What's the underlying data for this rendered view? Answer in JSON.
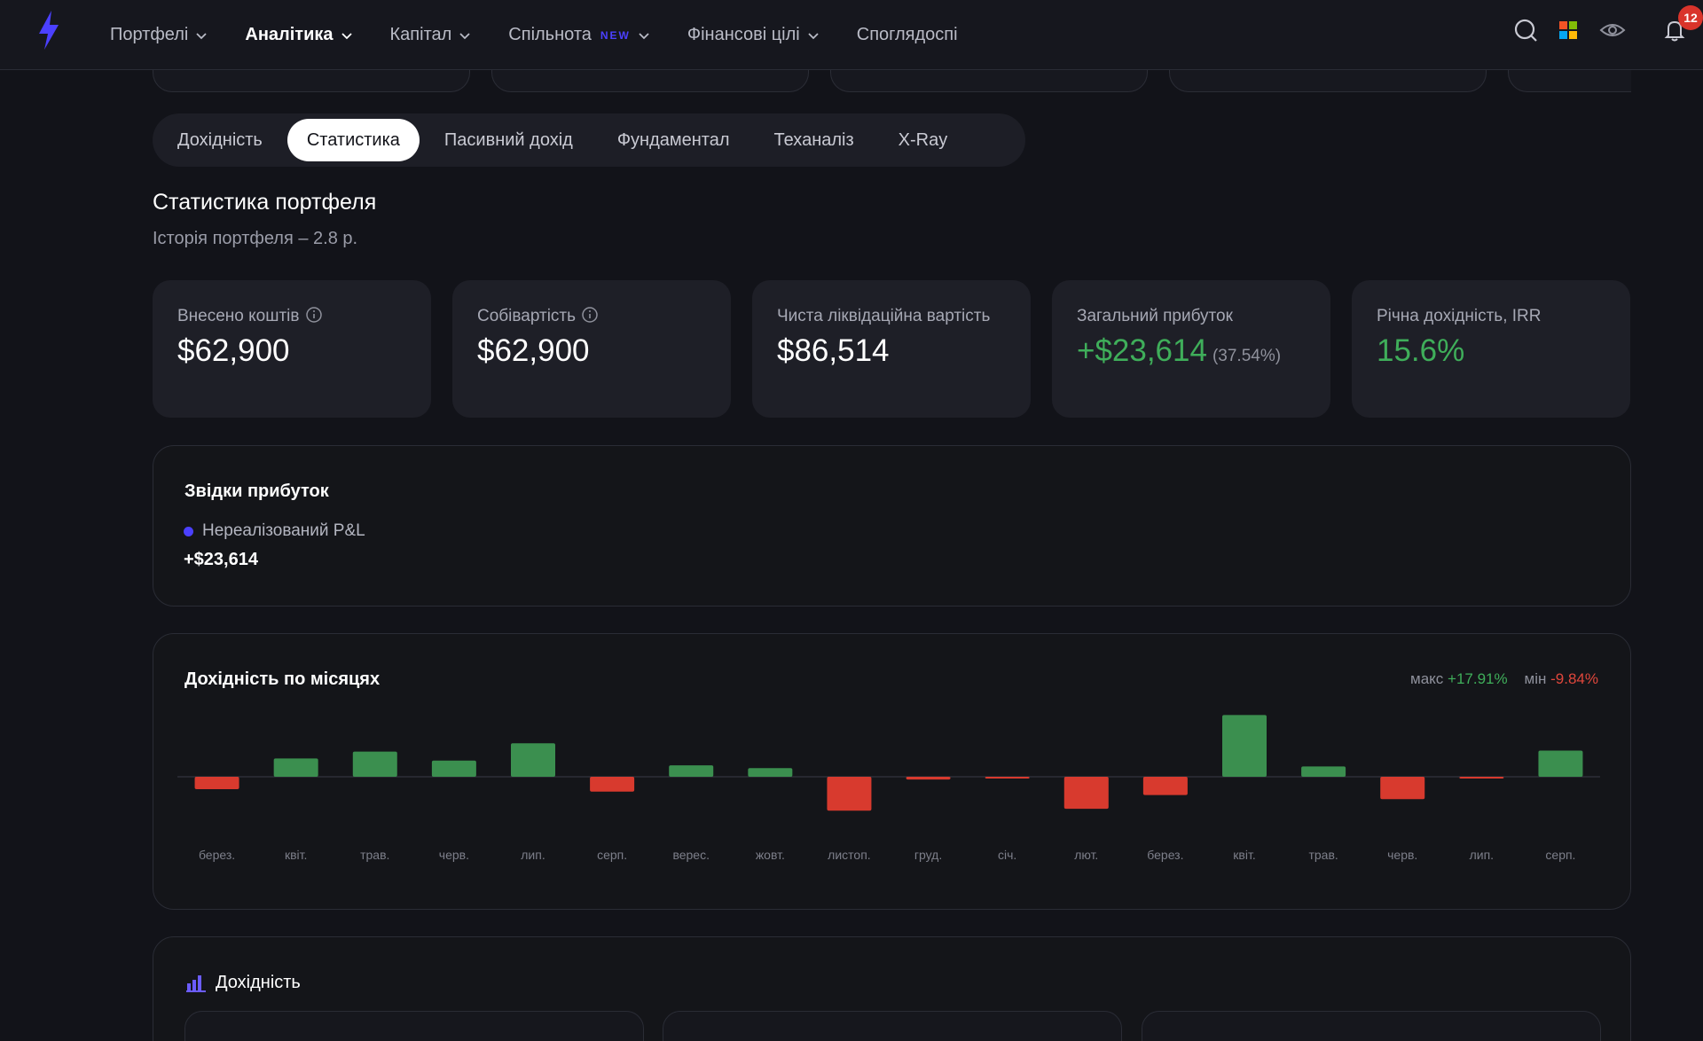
{
  "nav": {
    "items": [
      {
        "label": "Портфелі",
        "active": false,
        "badge": ""
      },
      {
        "label": "Аналітика",
        "active": true,
        "badge": ""
      },
      {
        "label": "Капітал",
        "active": false,
        "badge": ""
      },
      {
        "label": "Спільнота",
        "active": false,
        "badge": "NEW"
      },
      {
        "label": "Фінансові цілі",
        "active": false,
        "badge": ""
      },
      {
        "label": "Споглядоспі",
        "active": false,
        "badge": ""
      }
    ],
    "notifications_count": "12",
    "icons": {
      "logo": "lightning-icon",
      "search": "search-icon",
      "apps": "apps-grid-icon",
      "eye": "eye-icon",
      "bell": "bell-icon"
    }
  },
  "tabs": [
    {
      "label": "Дохідність",
      "active": false
    },
    {
      "label": "Статистика",
      "active": true
    },
    {
      "label": "Пасивний дохід",
      "active": false
    },
    {
      "label": "Фундаментал",
      "active": false
    },
    {
      "label": "Теханаліз",
      "active": false
    },
    {
      "label": "X-Ray",
      "active": false
    }
  ],
  "stats": {
    "title": "Статистика портфеля",
    "subtitle": "Історія портфеля – 2.8 р.",
    "cards": [
      {
        "label": "Внесено коштів",
        "value": "$62,900",
        "pct": "",
        "info": true,
        "positive": false
      },
      {
        "label": "Собівартість",
        "value": "$62,900",
        "pct": "",
        "info": true,
        "positive": false
      },
      {
        "label": "Чиста ліквідаційна вартість",
        "value": "$86,514",
        "pct": "",
        "info": false,
        "positive": false
      },
      {
        "label": "Загальний прибуток",
        "value": "+$23,614",
        "pct": "(37.54%)",
        "info": false,
        "positive": true
      },
      {
        "label": "Річна дохідність, IRR",
        "value": "15.6%",
        "pct": "",
        "info": false,
        "positive": true
      }
    ]
  },
  "profit_source": {
    "title": "Звідки прибуток",
    "legend_label": "Нереалізований P&L",
    "legend_value": "+$23,614"
  },
  "monthly": {
    "title": "Дохідність по місяцях",
    "max_label": "макс",
    "max_value": "+17.91%",
    "min_label": "мін",
    "min_value": "-9.84%"
  },
  "chart_data": {
    "type": "bar",
    "categories": [
      "берез.",
      "квіт.",
      "трав.",
      "черв.",
      "лип.",
      "серп.",
      "верес.",
      "жовт.",
      "листоп.",
      "груд.",
      "січ.",
      "лют.",
      "берез.",
      "квіт.",
      "трав.",
      "черв.",
      "лип.",
      "серп."
    ],
    "values": [
      -3.6,
      5.3,
      7.3,
      4.7,
      9.7,
      -4.3,
      3.3,
      2.5,
      -9.84,
      -0.8,
      -0.4,
      -9.3,
      -5.3,
      17.91,
      3.0,
      -6.5,
      -0.3,
      7.6
    ],
    "colors": {
      "positive": "#3b8f4f",
      "negative": "#d83a2e"
    },
    "ylim": [
      -10,
      18
    ],
    "grid": false
  },
  "returns": {
    "title": "Дохідність",
    "icon": "bar-chart-icon"
  }
}
